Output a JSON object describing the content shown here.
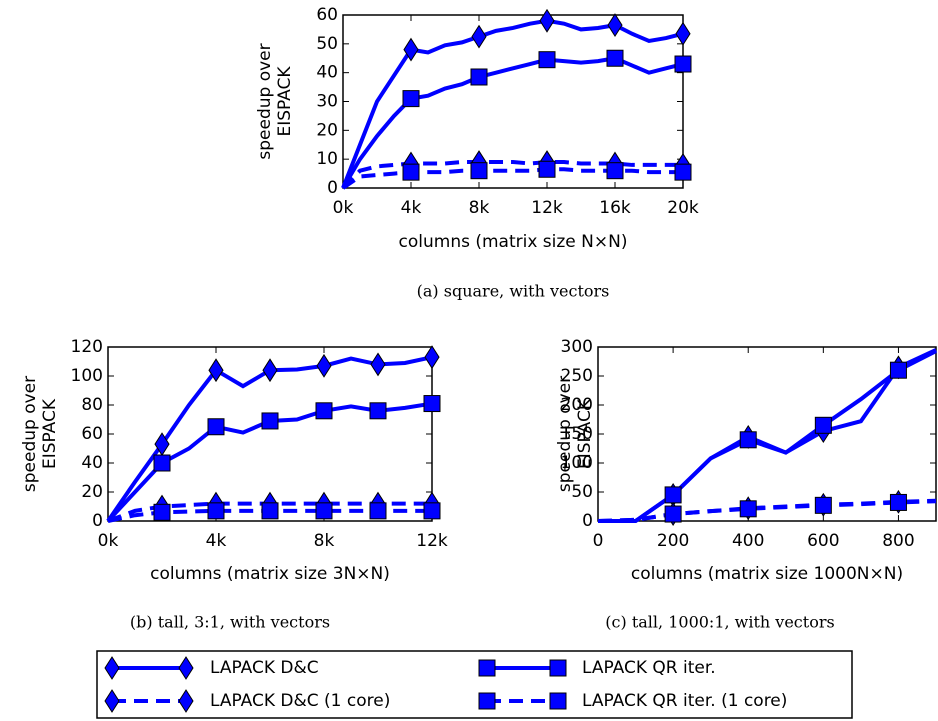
{
  "chart_data": [
    {
      "type": "line",
      "ylabel": [
        "speedup over",
        "EISPACK"
      ],
      "xlabel": "columns (matrix size N×N)",
      "caption": "(a) square, with vectors",
      "x": [
        0,
        1000,
        2000,
        3000,
        4000,
        5000,
        6000,
        7000,
        8000,
        9000,
        10000,
        11000,
        12000,
        13000,
        14000,
        15000,
        16000,
        17000,
        18000,
        19000,
        20000
      ],
      "xlim": [
        0,
        20000
      ],
      "xticks": [
        {
          "value": 0,
          "label": "0k"
        },
        {
          "value": 4000,
          "label": "4k"
        },
        {
          "value": 8000,
          "label": "8k"
        },
        {
          "value": 12000,
          "label": "12k"
        },
        {
          "value": 16000,
          "label": "16k"
        },
        {
          "value": 20000,
          "label": "20k"
        }
      ],
      "ylim": [
        0,
        60
      ],
      "yticks": [
        0,
        10,
        20,
        30,
        40,
        50,
        60
      ],
      "markevery": [
        4,
        4
      ],
      "series": [
        {
          "name": "LAPACK D&C",
          "color": "#0000ff",
          "linestyle": "solid",
          "marker": "diamond",
          "values": [
            0,
            15,
            30,
            39,
            48,
            47,
            49.5,
            50.5,
            52.5,
            54.5,
            55.5,
            57,
            58,
            57,
            55,
            55.5,
            56.5,
            53.5,
            51,
            52,
            53.5
          ]
        },
        {
          "name": "LAPACK QR iter.",
          "color": "#0000ff",
          "linestyle": "solid",
          "marker": "square",
          "values": [
            0,
            10,
            18,
            25,
            31,
            32,
            34.5,
            36,
            38.5,
            40,
            41.5,
            43,
            44.5,
            44,
            43.5,
            44,
            45,
            42.5,
            40,
            41.5,
            43
          ]
        },
        {
          "name": "LAPACK D&C (1 core)",
          "color": "#0000ff",
          "linestyle": "dashed",
          "marker": "diamond",
          "values": [
            0,
            6,
            7.5,
            8,
            8.5,
            8.5,
            8.5,
            9,
            9,
            9,
            9,
            8.5,
            9,
            9,
            8.5,
            8.5,
            8.5,
            8,
            8,
            8,
            8
          ]
        },
        {
          "name": "LAPACK QR iter.  (1 core)",
          "color": "#0000ff",
          "linestyle": "dashed",
          "marker": "square",
          "values": [
            0,
            4,
            4.5,
            5,
            5.5,
            5.5,
            5.5,
            6,
            6,
            6,
            6,
            6,
            6.5,
            6.5,
            6,
            6,
            6,
            6,
            5.5,
            5.5,
            5.5
          ]
        }
      ]
    },
    {
      "type": "line",
      "ylabel": [
        "speedup over",
        "EISPACK"
      ],
      "xlabel": "columns (matrix size 3N×N)",
      "caption": "(b) tall, 3:1, with vectors",
      "x": [
        0,
        1000,
        2000,
        3000,
        4000,
        5000,
        6000,
        7000,
        8000,
        9000,
        10000,
        11000,
        12000
      ],
      "xlim": [
        0,
        12000
      ],
      "xticks": [
        {
          "value": 0,
          "label": "0k"
        },
        {
          "value": 4000,
          "label": "4k"
        },
        {
          "value": 8000,
          "label": "8k"
        },
        {
          "value": 12000,
          "label": "12k"
        }
      ],
      "ylim": [
        0,
        120
      ],
      "yticks": [
        0,
        20,
        40,
        60,
        80,
        100,
        120
      ],
      "markevery": [
        2,
        2
      ],
      "series": [
        {
          "name": "LAPACK D&C",
          "color": "#0000ff",
          "linestyle": "solid",
          "marker": "diamond",
          "values": [
            0,
            27,
            53,
            80,
            104,
            93,
            104,
            104.5,
            107,
            112,
            108,
            109,
            113
          ]
        },
        {
          "name": "LAPACK QR iter.",
          "color": "#0000ff",
          "linestyle": "solid",
          "marker": "square",
          "values": [
            0,
            20,
            40,
            50,
            65,
            61,
            69,
            70,
            76,
            79,
            76,
            78,
            81
          ]
        },
        {
          "name": "LAPACK D&C (1 core)",
          "color": "#0000ff",
          "linestyle": "dashed",
          "marker": "diamond",
          "values": [
            0,
            7,
            10,
            11,
            12,
            12,
            12,
            12,
            12,
            12,
            12,
            12,
            12
          ]
        },
        {
          "name": "LAPACK QR iter.  (1 core)",
          "color": "#0000ff",
          "linestyle": "dashed",
          "marker": "square",
          "values": [
            0,
            4,
            6,
            6.5,
            7,
            7,
            7,
            7,
            7,
            7,
            7,
            7,
            7
          ]
        }
      ]
    },
    {
      "type": "line",
      "ylabel": [
        "speedup over",
        "EISPACK"
      ],
      "xlabel": "columns (matrix size 1000N×N)",
      "caption": "(c) tall, 1000:1, with vectors",
      "x": [
        0,
        100,
        200,
        300,
        400,
        500,
        600,
        700,
        800,
        900
      ],
      "xlim": [
        0,
        900
      ],
      "xticks": [
        0,
        200,
        400,
        600,
        800
      ],
      "ylim": [
        0,
        300
      ],
      "yticks": [
        0,
        50,
        100,
        150,
        200,
        250,
        300
      ],
      "markevery": [
        2,
        2
      ],
      "series": [
        {
          "name": "LAPACK D&C",
          "color": "#0000ff",
          "linestyle": "solid",
          "marker": "diamond",
          "values": [
            0,
            0,
            45,
            108,
            145,
            118,
            155,
            172,
            265,
            295
          ]
        },
        {
          "name": "LAPACK QR iter.",
          "color": "#0000ff",
          "linestyle": "solid",
          "marker": "square",
          "values": [
            0,
            0,
            45,
            108,
            140,
            118,
            165,
            210,
            260,
            293
          ]
        },
        {
          "name": "LAPACK D&C (1 core)",
          "color": "#0000ff",
          "linestyle": "dashed",
          "marker": "diamond",
          "values": [
            0,
            2,
            12,
            17,
            22,
            25,
            28,
            30,
            33,
            35
          ]
        },
        {
          "name": "LAPACK QR iter.  (1 core)",
          "color": "#0000ff",
          "linestyle": "dashed",
          "marker": "square",
          "values": [
            0,
            2,
            12,
            17,
            21,
            24,
            27,
            29,
            32,
            34
          ]
        }
      ]
    }
  ]
}
